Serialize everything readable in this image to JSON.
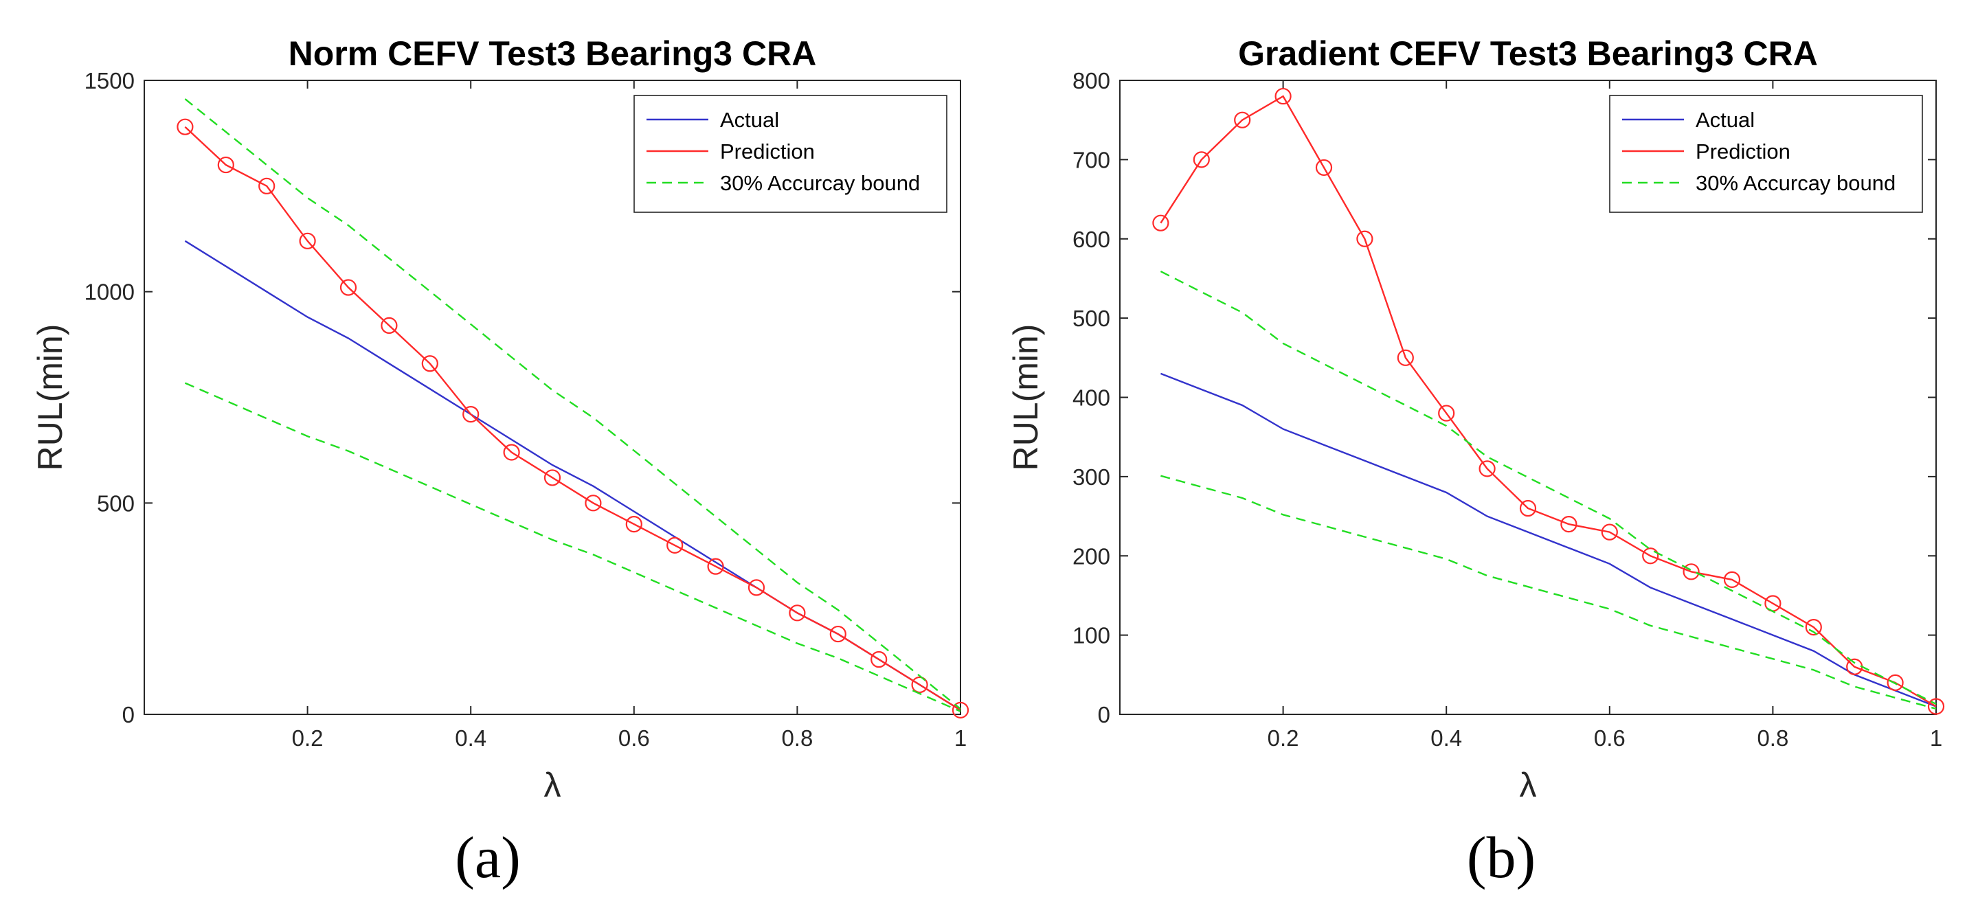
{
  "panels": [
    {
      "label": "(a)"
    },
    {
      "label": "(b)"
    }
  ],
  "chart_data": [
    {
      "type": "line",
      "title": "Norm CEFV Test3 Bearing3 CRA",
      "xlabel": "λ",
      "ylabel": "RUL(min)",
      "xlim": [
        0,
        1
      ],
      "ylim": [
        0,
        1500
      ],
      "xticks": [
        0.2,
        0.4,
        0.6,
        0.8,
        1
      ],
      "xtick_labels": [
        "0.2",
        "0.4",
        "0.6",
        "0.8",
        "1"
      ],
      "yticks": [
        0,
        500,
        1000,
        1500
      ],
      "ytick_labels": [
        "0",
        "500",
        "1000",
        "1500"
      ],
      "legend": {
        "position": "top-right",
        "entries": [
          "Actual",
          "Prediction",
          "30% Accurcay bound"
        ]
      },
      "series": [
        {
          "name": "Actual",
          "color": "#3333cc",
          "style": "solid",
          "markers": false,
          "x": [
            0.05,
            0.1,
            0.15,
            0.2,
            0.25,
            0.3,
            0.35,
            0.4,
            0.45,
            0.5,
            0.55,
            0.6,
            0.65,
            0.7,
            0.75,
            0.8,
            0.85,
            0.9,
            0.95,
            1.0
          ],
          "y": [
            1120,
            1060,
            1000,
            940,
            890,
            830,
            770,
            710,
            650,
            590,
            540,
            480,
            420,
            360,
            300,
            240,
            190,
            130,
            70,
            10
          ]
        },
        {
          "name": "Prediction",
          "color": "#ff2a2a",
          "style": "solid",
          "markers": true,
          "x": [
            0.05,
            0.1,
            0.15,
            0.2,
            0.25,
            0.3,
            0.35,
            0.4,
            0.45,
            0.5,
            0.55,
            0.6,
            0.65,
            0.7,
            0.75,
            0.8,
            0.85,
            0.9,
            0.95,
            1.0
          ],
          "y": [
            1390,
            1300,
            1250,
            1120,
            1010,
            920,
            830,
            710,
            620,
            560,
            500,
            450,
            400,
            350,
            300,
            240,
            190,
            130,
            70,
            10
          ]
        },
        {
          "name": "30% Accurcay bound (upper)",
          "color": "#22dd22",
          "style": "dashed",
          "markers": false,
          "x": [
            0.05,
            0.1,
            0.15,
            0.2,
            0.25,
            0.3,
            0.35,
            0.4,
            0.45,
            0.5,
            0.55,
            0.6,
            0.65,
            0.7,
            0.75,
            0.8,
            0.85,
            0.9,
            0.95,
            1.0
          ],
          "y": [
            1456,
            1378,
            1300,
            1222,
            1157,
            1079,
            1001,
            923,
            845,
            767,
            702,
            624,
            546,
            468,
            390,
            312,
            247,
            169,
            91,
            13
          ]
        },
        {
          "name": "30% Accurcay bound (lower)",
          "color": "#22dd22",
          "style": "dashed",
          "markers": false,
          "x": [
            0.05,
            0.1,
            0.15,
            0.2,
            0.25,
            0.3,
            0.35,
            0.4,
            0.45,
            0.5,
            0.55,
            0.6,
            0.65,
            0.7,
            0.75,
            0.8,
            0.85,
            0.9,
            0.95,
            1.0
          ],
          "y": [
            784,
            742,
            700,
            658,
            623,
            581,
            539,
            497,
            455,
            413,
            378,
            336,
            294,
            252,
            210,
            168,
            133,
            91,
            49,
            7
          ]
        }
      ]
    },
    {
      "type": "line",
      "title": "Gradient CEFV Test3 Bearing3 CRA",
      "xlabel": "λ",
      "ylabel": "RUL(min)",
      "xlim": [
        0,
        1
      ],
      "ylim": [
        0,
        800
      ],
      "xticks": [
        0.2,
        0.4,
        0.6,
        0.8,
        1
      ],
      "xtick_labels": [
        "0.2",
        "0.4",
        "0.6",
        "0.8",
        "1"
      ],
      "yticks": [
        0,
        100,
        200,
        300,
        400,
        500,
        600,
        700,
        800
      ],
      "ytick_labels": [
        "0",
        "100",
        "200",
        "300",
        "400",
        "500",
        "600",
        "700",
        "800"
      ],
      "legend": {
        "position": "top-right",
        "entries": [
          "Actual",
          "Prediction",
          "30% Accurcay bound"
        ]
      },
      "series": [
        {
          "name": "Actual",
          "color": "#3333cc",
          "style": "solid",
          "markers": false,
          "x": [
            0.05,
            0.1,
            0.15,
            0.2,
            0.25,
            0.3,
            0.35,
            0.4,
            0.45,
            0.5,
            0.55,
            0.6,
            0.65,
            0.7,
            0.75,
            0.8,
            0.85,
            0.9,
            0.95,
            1.0
          ],
          "y": [
            430,
            410,
            390,
            360,
            340,
            320,
            300,
            280,
            250,
            230,
            210,
            190,
            160,
            140,
            120,
            100,
            80,
            50,
            30,
            10
          ]
        },
        {
          "name": "Prediction",
          "color": "#ff2a2a",
          "style": "solid",
          "markers": true,
          "x": [
            0.05,
            0.1,
            0.15,
            0.2,
            0.25,
            0.3,
            0.35,
            0.4,
            0.45,
            0.5,
            0.55,
            0.6,
            0.65,
            0.7,
            0.75,
            0.8,
            0.85,
            0.9,
            0.95,
            1.0
          ],
          "y": [
            620,
            700,
            750,
            780,
            690,
            600,
            450,
            380,
            310,
            260,
            240,
            230,
            200,
            180,
            170,
            140,
            110,
            60,
            40,
            10
          ]
        },
        {
          "name": "30% Accurcay bound (upper)",
          "color": "#22dd22",
          "style": "dashed",
          "markers": false,
          "x": [
            0.05,
            0.1,
            0.15,
            0.2,
            0.25,
            0.3,
            0.35,
            0.4,
            0.45,
            0.5,
            0.55,
            0.6,
            0.65,
            0.7,
            0.75,
            0.8,
            0.85,
            0.9,
            0.95,
            1.0
          ],
          "y": [
            559,
            533,
            507,
            468,
            442,
            416,
            390,
            364,
            325,
            299,
            273,
            247,
            208,
            182,
            156,
            130,
            104,
            65,
            39,
            13
          ]
        },
        {
          "name": "30% Accurcay bound (lower)",
          "color": "#22dd22",
          "style": "dashed",
          "markers": false,
          "x": [
            0.05,
            0.1,
            0.15,
            0.2,
            0.25,
            0.3,
            0.35,
            0.4,
            0.45,
            0.5,
            0.55,
            0.6,
            0.65,
            0.7,
            0.75,
            0.8,
            0.85,
            0.9,
            0.95,
            1.0
          ],
          "y": [
            301,
            287,
            273,
            252,
            238,
            224,
            210,
            196,
            175,
            161,
            147,
            133,
            112,
            98,
            84,
            70,
            56,
            35,
            21,
            7
          ]
        }
      ]
    }
  ]
}
